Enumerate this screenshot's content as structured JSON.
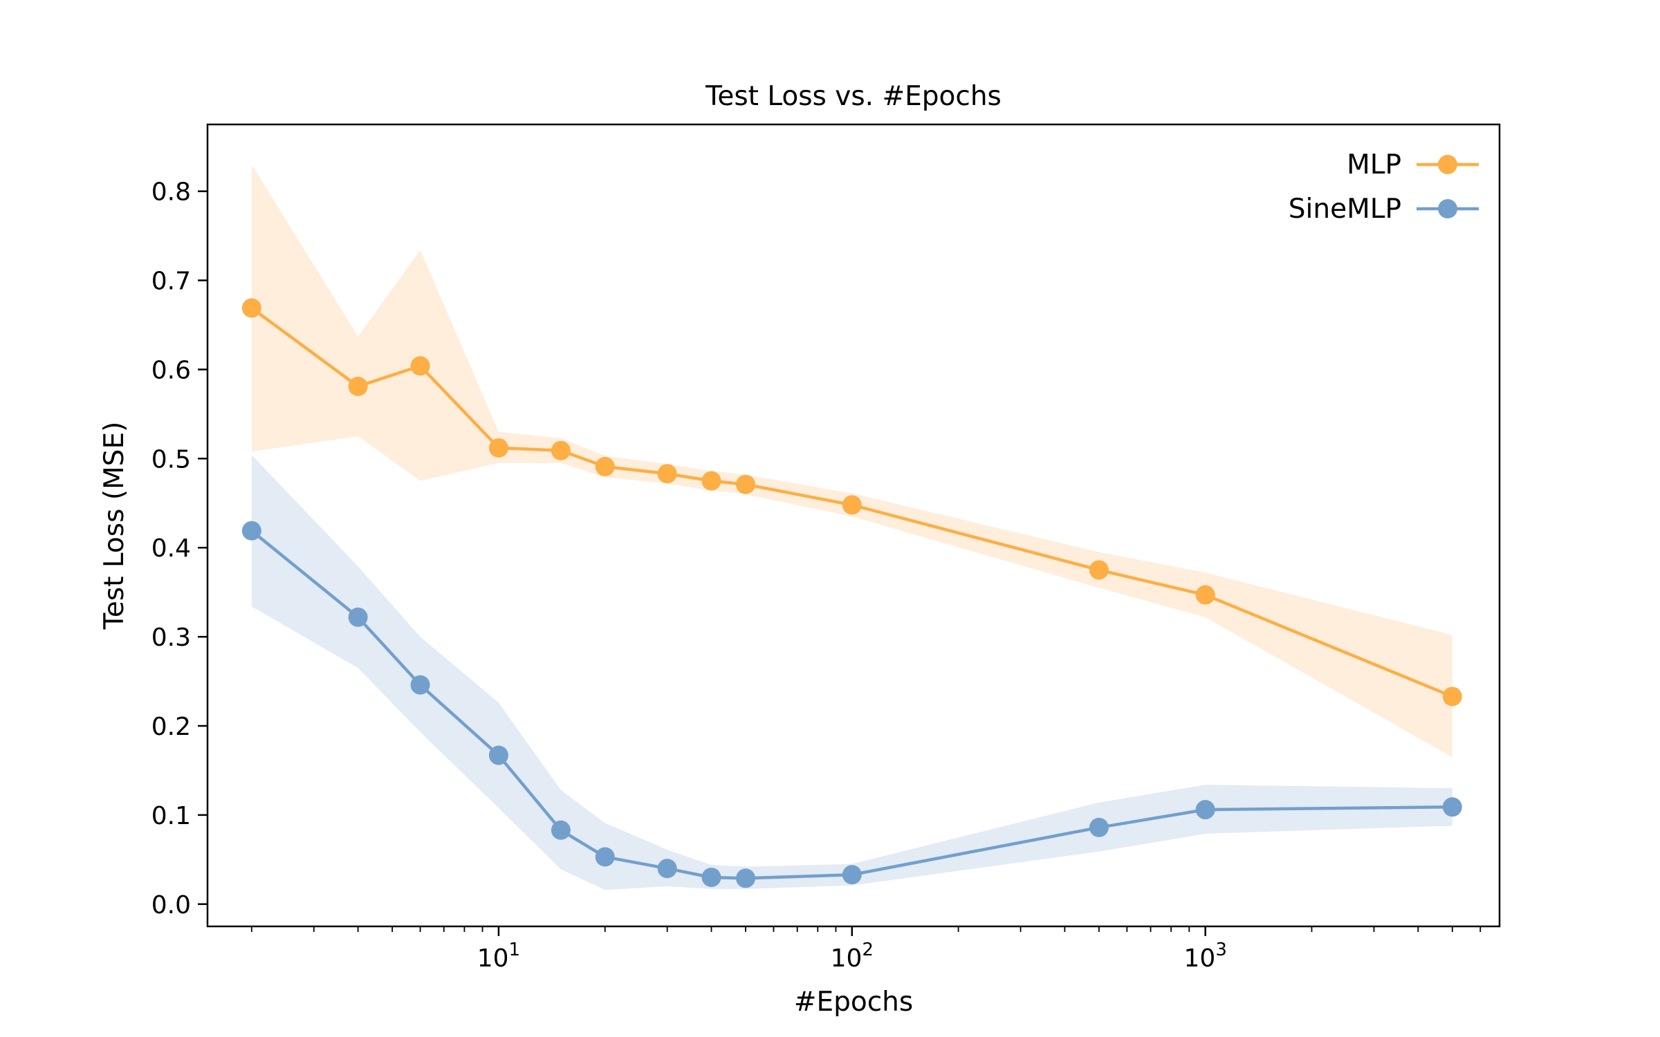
{
  "chart_data": {
    "type": "line",
    "title": "Test Loss vs. #Epochs",
    "xlabel": "#Epochs",
    "ylabel": "Test Loss (MSE)",
    "x_scale": "log",
    "xlim": [
      1.5,
      6800
    ],
    "ylim": [
      -0.025,
      0.875
    ],
    "x_ticks": [
      {
        "value": 10,
        "base": "10",
        "exp": "1"
      },
      {
        "value": 100,
        "base": "10",
        "exp": "2"
      },
      {
        "value": 1000,
        "base": "10",
        "exp": "3"
      }
    ],
    "y_ticks": [
      0.0,
      0.1,
      0.2,
      0.3,
      0.4,
      0.5,
      0.6,
      0.7,
      0.8
    ],
    "y_tick_labels": [
      "0.0",
      "0.1",
      "0.2",
      "0.3",
      "0.4",
      "0.5",
      "0.6",
      "0.7",
      "0.8"
    ],
    "grid": false,
    "legend_position": "top-right",
    "x": [
      2,
      4,
      6,
      10,
      15,
      20,
      30,
      40,
      50,
      100,
      500,
      1000,
      5000
    ],
    "series": [
      {
        "name": "MLP",
        "color": "#FDAE45",
        "band_color": "#FEEEDB",
        "values": [
          0.669,
          0.581,
          0.604,
          0.512,
          0.509,
          0.491,
          0.483,
          0.475,
          0.471,
          0.448,
          0.375,
          0.347,
          0.233
        ],
        "lower": [
          0.508,
          0.525,
          0.475,
          0.495,
          0.495,
          0.479,
          0.472,
          0.464,
          0.46,
          0.435,
          0.355,
          0.322,
          0.165
        ],
        "upper": [
          0.83,
          0.637,
          0.734,
          0.53,
          0.523,
          0.503,
          0.494,
          0.486,
          0.482,
          0.461,
          0.395,
          0.372,
          0.302
        ]
      },
      {
        "name": "SineMLP",
        "color": "#739FCC",
        "band_color": "#E3EBF5",
        "values": [
          0.419,
          0.322,
          0.246,
          0.167,
          0.083,
          0.053,
          0.04,
          0.03,
          0.029,
          0.033,
          0.086,
          0.106,
          0.109
        ],
        "lower": [
          0.334,
          0.265,
          0.193,
          0.108,
          0.039,
          0.016,
          0.02,
          0.017,
          0.017,
          0.021,
          0.059,
          0.079,
          0.088
        ],
        "upper": [
          0.504,
          0.379,
          0.3,
          0.226,
          0.128,
          0.091,
          0.061,
          0.044,
          0.042,
          0.045,
          0.114,
          0.134,
          0.13
        ]
      }
    ]
  }
}
